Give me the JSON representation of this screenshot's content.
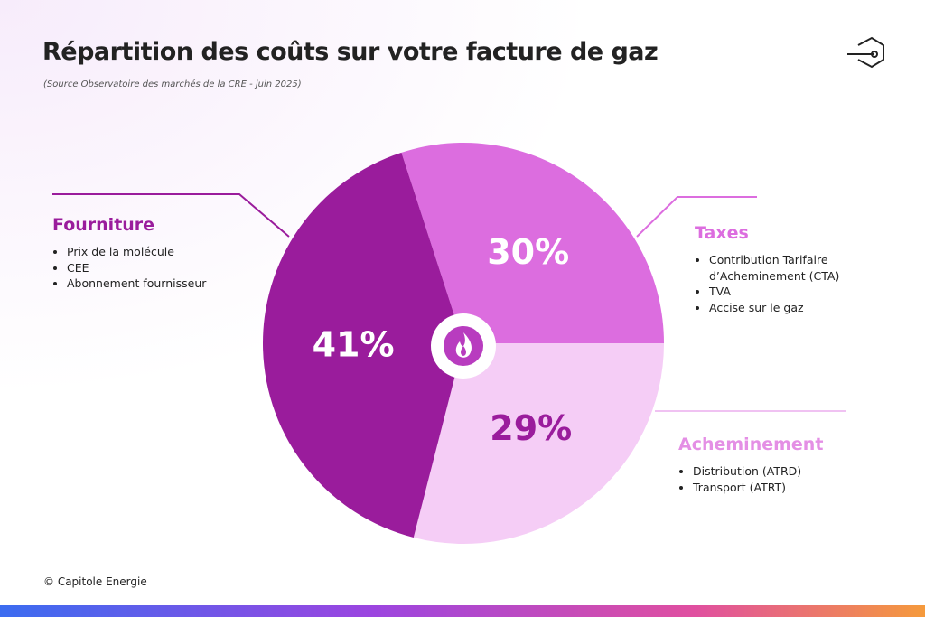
{
  "chart_data": {
    "type": "pie",
    "title": "Répartition des coûts sur votre facture de gaz",
    "subtitle": "(Source Observatoire des marchés de la CRE - juin 2025)",
    "categories": [
      "Taxes",
      "Acheminement",
      "Fourniture"
    ],
    "values": [
      30,
      29,
      41
    ],
    "value_labels": [
      "30%",
      "29%",
      "41%"
    ],
    "colors": [
      "#dc6ddf",
      "#f5cdf6",
      "#9a1c9c"
    ],
    "details": [
      [
        "Contribution Tarifaire d’Acheminement (CTA)",
        "TVA",
        "Accise sur le gaz"
      ],
      [
        "Distribution (ATRD)",
        "Transport (ATRT)"
      ],
      [
        "Prix de la molécule",
        "CEE",
        "Abonnement fournisseur"
      ]
    ],
    "footer": "© Capitole Energie"
  }
}
